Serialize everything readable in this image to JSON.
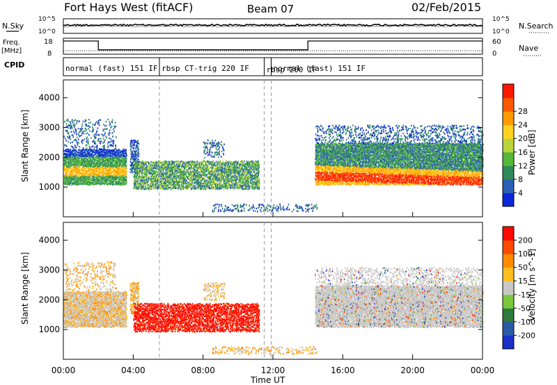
{
  "header": {
    "station": "Fort Hays West (fitACF)",
    "beam": "Beam 07",
    "date": "02/Feb/2015"
  },
  "status_panel": {
    "nsky_label": "N.Sky",
    "nsearch_label": "N.Search",
    "freq_label": "Freq.",
    "freq_unit": "[MHz]",
    "nave_label": "Nave",
    "cpid_label": "CPID",
    "left_ticks_noise": [
      "10^5",
      "10^0"
    ],
    "right_ticks_noise": [
      "10^5",
      "10^0"
    ],
    "left_ticks_freq": [
      "18",
      "8"
    ],
    "right_ticks_nave": [
      "60",
      "0"
    ]
  },
  "cpid_segments": [
    {
      "label": "normal (fast) 151 IF",
      "start_h": 0.0,
      "end_h": 5.5
    },
    {
      "label": "rbsp CT-trig 220 IF",
      "start_h": 5.5,
      "end_h": 11.5
    },
    {
      "label": "rbsp 200 IF",
      "start_h": 11.5,
      "end_h": 11.9
    },
    {
      "label": "normal (fast) 151 IF",
      "start_h": 11.9,
      "end_h": 24.0
    }
  ],
  "chart_data": [
    {
      "type": "heatmap",
      "name": "power",
      "xlabel": "",
      "ylabel": "Slant Range [km]",
      "xlim": [
        0,
        24
      ],
      "ylim": [
        0,
        4600
      ],
      "y_ticks": [
        1000,
        2000,
        3000,
        4000
      ],
      "colorbar": {
        "label": "Power [dB]",
        "ticks": [
          "4",
          "8",
          "12",
          "16",
          "20",
          "24",
          "28"
        ],
        "colors": [
          "#0a28d8",
          "#2b5fb5",
          "#2e8a58",
          "#55b83a",
          "#b8d43a",
          "#ffd21e",
          "#ff9b00",
          "#ff5a00",
          "#ff1800"
        ]
      }
    },
    {
      "type": "heatmap",
      "name": "velocity",
      "xlabel": "Time UT",
      "ylabel": "Slant Range [km]",
      "xlim": [
        0,
        24
      ],
      "ylim": [
        0,
        4600
      ],
      "y_ticks": [
        1000,
        2000,
        3000,
        4000
      ],
      "x_ticks": [
        "00:00",
        "04:00",
        "08:00",
        "12:00",
        "16:00",
        "20:00",
        "00:00"
      ],
      "colorbar": {
        "label": "Velocity [m s^-1]",
        "ticks": [
          "200",
          "100",
          "50",
          "15",
          "-15",
          "-50",
          "-100",
          "-200"
        ],
        "colors": [
          "#1a30c8",
          "#2a5aa8",
          "#2e7a3c",
          "#7ac83a",
          "#c8c8c8",
          "#ffbe1e",
          "#ff8a00",
          "#ff4a00",
          "#ff0a00"
        ]
      }
    }
  ]
}
